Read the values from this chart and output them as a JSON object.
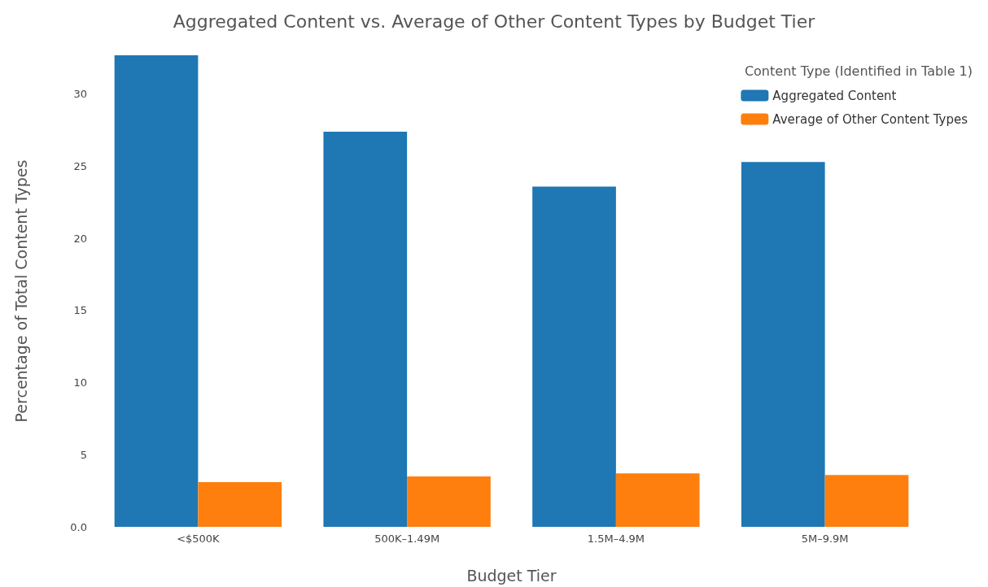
{
  "chart_data": {
    "type": "bar",
    "title": "Aggregated Content vs. Average of Other Content Types by Budget Tier",
    "xlabel": "Budget Tier",
    "ylabel": "Percentage of Total Content Types",
    "legend_title": "Content Type (Identified in Table 1)",
    "categories": [
      "<$500K",
      "500K–1.49M",
      "1.5M–4.9M",
      "5M–9.9M"
    ],
    "series": [
      {
        "name": "Aggregated Content",
        "color": "#1f77b4",
        "values": [
          32.7,
          27.4,
          23.6,
          25.3
        ]
      },
      {
        "name": "Average of Other Content Types",
        "color": "#ff7f0e",
        "values": [
          3.1,
          3.5,
          3.7,
          3.6
        ]
      }
    ],
    "ylim": [
      0,
      32.7
    ],
    "yticks": [
      {
        "value": 0,
        "label": "0.0"
      },
      5,
      10,
      15,
      20,
      25,
      30
    ],
    "grid": false,
    "legend": "top right"
  }
}
